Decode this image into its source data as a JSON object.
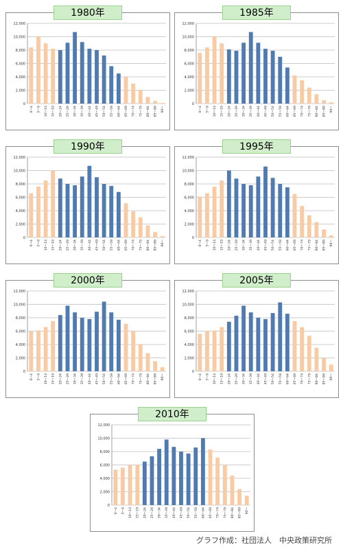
{
  "credit": "グラフ作成：社団法人　中央政策研究所",
  "colors": {
    "young_old": "#f9cba5",
    "working": "#4f7bb1"
  },
  "chart_data": [
    {
      "type": "bar",
      "title": "1980年",
      "categories": [
        "0～4",
        "5～9",
        "10～14",
        "15～19",
        "20～24",
        "25～29",
        "30～34",
        "35～39",
        "40～44",
        "45～49",
        "50～54",
        "55～59",
        "60～64",
        "65～69",
        "70～74",
        "75～79",
        "80～84",
        "85～89",
        "90～"
      ],
      "values": [
        8400,
        10000,
        9000,
        8200,
        8000,
        9100,
        10700,
        9200,
        8200,
        8000,
        7200,
        5600,
        4500,
        4000,
        3000,
        2000,
        1000,
        400,
        100
      ],
      "ylim": [
        0,
        12000
      ],
      "yticks": [
        0,
        2000,
        4000,
        6000,
        8000,
        10000,
        12000
      ],
      "ytick_labels": [
        "0",
        "2,000",
        "4,000",
        "6,000",
        "8,000",
        "10,000",
        "12,000"
      ]
    },
    {
      "type": "bar",
      "title": "1985年",
      "categories": [
        "0～4",
        "5～9",
        "10～14",
        "15～19",
        "20～24",
        "25～29",
        "30～34",
        "35～39",
        "40～44",
        "45～49",
        "50～54",
        "55～59",
        "60～64",
        "65～69",
        "70～74",
        "75～79",
        "80～84",
        "85～89",
        "90～"
      ],
      "values": [
        7600,
        8400,
        10000,
        9000,
        8100,
        7900,
        9100,
        10700,
        9100,
        8200,
        7900,
        7000,
        5400,
        4200,
        3500,
        2400,
        1400,
        500,
        200
      ],
      "ylim": [
        0,
        12000
      ],
      "yticks": [
        0,
        2000,
        4000,
        6000,
        8000,
        10000,
        12000
      ],
      "ytick_labels": [
        "0",
        "2,000",
        "4,000",
        "6,000",
        "8,000",
        "10,000",
        "12,000"
      ]
    },
    {
      "type": "bar",
      "title": "1990年",
      "categories": [
        "0～4",
        "5～9",
        "10～14",
        "15～19",
        "20～24",
        "25～29",
        "30～34",
        "35～39",
        "40～44",
        "45～49",
        "50～54",
        "55～59",
        "60～64",
        "65～69",
        "70～74",
        "75～79",
        "80～84",
        "85～89",
        "90～"
      ],
      "values": [
        6600,
        7600,
        8500,
        10000,
        8800,
        8000,
        7800,
        9100,
        10700,
        9000,
        8000,
        7700,
        6800,
        5100,
        3900,
        3000,
        1800,
        800,
        200
      ],
      "ylim": [
        0,
        12000
      ],
      "yticks": [
        0,
        2000,
        4000,
        6000,
        8000,
        10000,
        12000
      ],
      "ytick_labels": [
        "0",
        "2,000",
        "4,000",
        "6,000",
        "8,000",
        "10,000",
        "12,000"
      ]
    },
    {
      "type": "bar",
      "title": "1995年",
      "categories": [
        "0～4",
        "5～9",
        "10～14",
        "15～19",
        "20～24",
        "25～29",
        "30～34",
        "35～39",
        "40～44",
        "45～49",
        "50～54",
        "55～59",
        "60～64",
        "65～69",
        "70～74",
        "75～79",
        "80～84",
        "85～89",
        "90～"
      ],
      "values": [
        6100,
        6600,
        7600,
        8500,
        10000,
        8800,
        8000,
        7800,
        9100,
        10600,
        8900,
        8000,
        7500,
        6500,
        4700,
        3300,
        2300,
        1200,
        300
      ],
      "ylim": [
        0,
        12000
      ],
      "yticks": [
        0,
        2000,
        4000,
        6000,
        8000,
        10000,
        12000
      ],
      "ytick_labels": [
        "0",
        "2,000",
        "4,000",
        "6,000",
        "8,000",
        "10,000",
        "12,000"
      ]
    },
    {
      "type": "bar",
      "title": "2000年",
      "categories": [
        "0～4",
        "5～9",
        "10～14",
        "15～19",
        "20～24",
        "25～29",
        "30～34",
        "35～39",
        "40～44",
        "45～49",
        "50～54",
        "55～59",
        "60～64",
        "65～69",
        "70～74",
        "75～79",
        "80～84",
        "85～89",
        "90～"
      ],
      "values": [
        6000,
        6100,
        6600,
        7500,
        8400,
        9800,
        8800,
        8000,
        7800,
        8900,
        10400,
        8800,
        7700,
        7100,
        6000,
        4000,
        2700,
        1500,
        600
      ],
      "ylim": [
        0,
        12000
      ],
      "yticks": [
        0,
        2000,
        4000,
        6000,
        8000,
        10000,
        12000
      ],
      "ytick_labels": [
        "0",
        "2,000",
        "4,000",
        "6,000",
        "8,000",
        "10,000",
        "12,000"
      ]
    },
    {
      "type": "bar",
      "title": "2005年",
      "categories": [
        "0～4",
        "5～9",
        "10～14",
        "15～19",
        "20～24",
        "25～29",
        "30～34",
        "35～39",
        "40～44",
        "45～49",
        "50～54",
        "55～59",
        "60～64",
        "65～69",
        "70～74",
        "75～79",
        "80～84",
        "85～89",
        "90～"
      ],
      "values": [
        5600,
        6000,
        6100,
        6600,
        7400,
        8300,
        9800,
        8800,
        8000,
        7800,
        8700,
        10300,
        8600,
        7500,
        6600,
        5300,
        3500,
        2000,
        1000
      ],
      "ylim": [
        0,
        12000
      ],
      "yticks": [
        0,
        2000,
        4000,
        6000,
        8000,
        10000,
        12000
      ],
      "ytick_labels": [
        "0",
        "2,000",
        "4,000",
        "6,000",
        "8,000",
        "10,000",
        "12,000"
      ]
    },
    {
      "type": "bar",
      "title": "2010年",
      "categories": [
        "0～4",
        "5～9",
        "10～14",
        "15～19",
        "20～24",
        "25～29",
        "30～34",
        "35～39",
        "40～44",
        "45～49",
        "50～54",
        "55～59",
        "60～64",
        "65～69",
        "70～74",
        "75～79",
        "80～84",
        "85～89",
        "90～"
      ],
      "values": [
        5300,
        5600,
        6000,
        6000,
        6500,
        7300,
        8400,
        9800,
        8700,
        8000,
        7700,
        8600,
        10000,
        8300,
        7100,
        6000,
        4400,
        2400,
        1400
      ],
      "ylim": [
        0,
        12000
      ],
      "yticks": [
        0,
        2000,
        4000,
        6000,
        8000,
        10000,
        12000
      ],
      "ytick_labels": [
        "0",
        "2,000",
        "4,000",
        "6,000",
        "8,000",
        "10,000",
        "12,000"
      ]
    }
  ]
}
